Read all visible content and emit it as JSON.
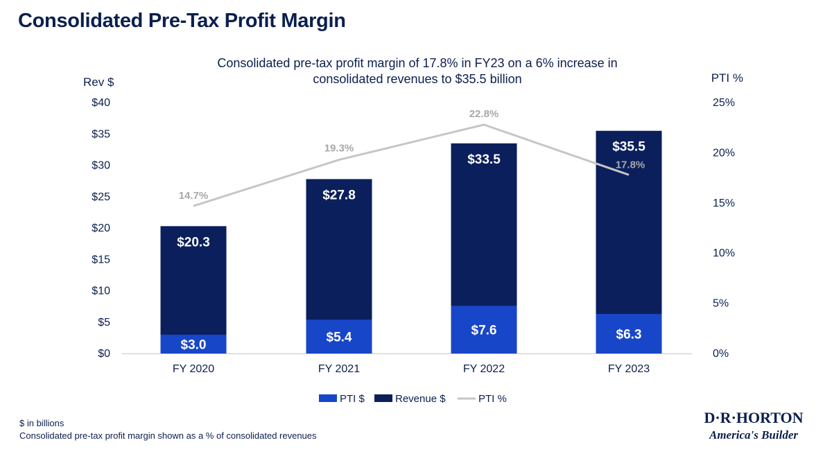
{
  "page": {
    "title": "Consolidated Pre-Tax Profit Margin",
    "subtitle_line1": "Consolidated pre-tax profit margin of 17.8% in FY23 on a 6% increase in",
    "subtitle_line2": "consolidated revenues to $35.5 billion"
  },
  "footnotes": {
    "line1": "$ in billions",
    "line2": "Consolidated pre-tax profit margin shown as a % of consolidated revenues"
  },
  "logo": {
    "name": "D·R·HORTON",
    "tagline": "America's Builder"
  },
  "colors": {
    "revenue": "#0b1f5c",
    "pti": "#1846c8",
    "pti_pct": "#c6c6c6"
  },
  "chart_data": {
    "type": "bar",
    "title": "Consolidated pre-tax profit margin of 17.8% in FY23 on a 6% increase in consolidated revenues to $35.5 billion",
    "categories": [
      "FY 2020",
      "FY 2021",
      "FY 2022",
      "FY 2023"
    ],
    "series": [
      {
        "name": "Revenue $",
        "type": "bar",
        "axis": "left",
        "values": [
          20.3,
          27.8,
          33.5,
          35.5
        ],
        "labels": [
          "$20.3",
          "$27.8",
          "$33.5",
          "$35.5"
        ]
      },
      {
        "name": "PTI $",
        "type": "bar",
        "axis": "left",
        "values": [
          3.0,
          5.4,
          7.6,
          6.3
        ],
        "labels": [
          "$3.0",
          "$5.4",
          "$7.6",
          "$6.3"
        ]
      },
      {
        "name": "PTI %",
        "type": "line",
        "axis": "right",
        "values": [
          14.7,
          19.3,
          22.8,
          17.8
        ],
        "labels": [
          "14.7%",
          "19.3%",
          "22.8%",
          "17.8%"
        ]
      }
    ],
    "y_left": {
      "label": "Rev $",
      "lim": [
        0,
        40
      ],
      "ticks": [
        "$0",
        "$5",
        "$10",
        "$15",
        "$20",
        "$25",
        "$30",
        "$35",
        "$40"
      ]
    },
    "y_right": {
      "label": "PTI %",
      "lim": [
        0,
        25
      ],
      "ticks": [
        "0%",
        "5%",
        "10%",
        "15%",
        "20%",
        "25%"
      ]
    },
    "legend": {
      "placement": "bottom",
      "entries": [
        "PTI $",
        "Revenue $",
        "PTI %"
      ]
    },
    "grid": false
  }
}
